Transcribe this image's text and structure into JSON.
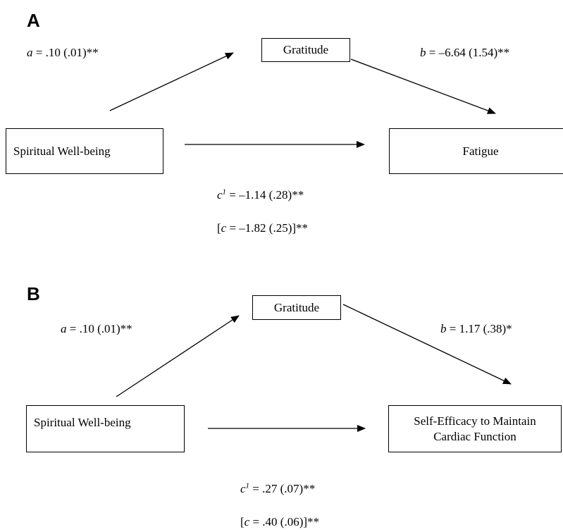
{
  "panel_a": {
    "letter": "A",
    "nodes": {
      "predictor": "Spiritual Well-being",
      "mediator": "Gratitude",
      "outcome": "Fatigue"
    },
    "paths": {
      "a": {
        "symbol": "a",
        "value": " = .10 (.01)**"
      },
      "b": {
        "symbol": "b",
        "value": " = –6.64 (1.54)**"
      },
      "c_prime": {
        "symbol": "c",
        "superscript": "1",
        "value": " = –1.14 (.28)**"
      },
      "c_total": {
        "prefix": "[",
        "symbol": "c",
        "value": " = –1.82 (.25)]**"
      }
    }
  },
  "panel_b": {
    "letter": "B",
    "nodes": {
      "predictor": "Spiritual Well-being",
      "mediator": "Gratitude",
      "outcome_line1": "Self-Efficacy to Maintain",
      "outcome_line2": "Cardiac Function"
    },
    "paths": {
      "a": {
        "symbol": "a",
        "value": " = .10 (.01)**"
      },
      "b": {
        "symbol": "b",
        "value": " = 1.17 (.38)*"
      },
      "c_prime": {
        "symbol": "c",
        "superscript": "1",
        "value": " = .27 (.07)**"
      },
      "c_total": {
        "prefix": "[",
        "symbol": "c",
        "value": " = .40 (.06)]**"
      }
    }
  }
}
